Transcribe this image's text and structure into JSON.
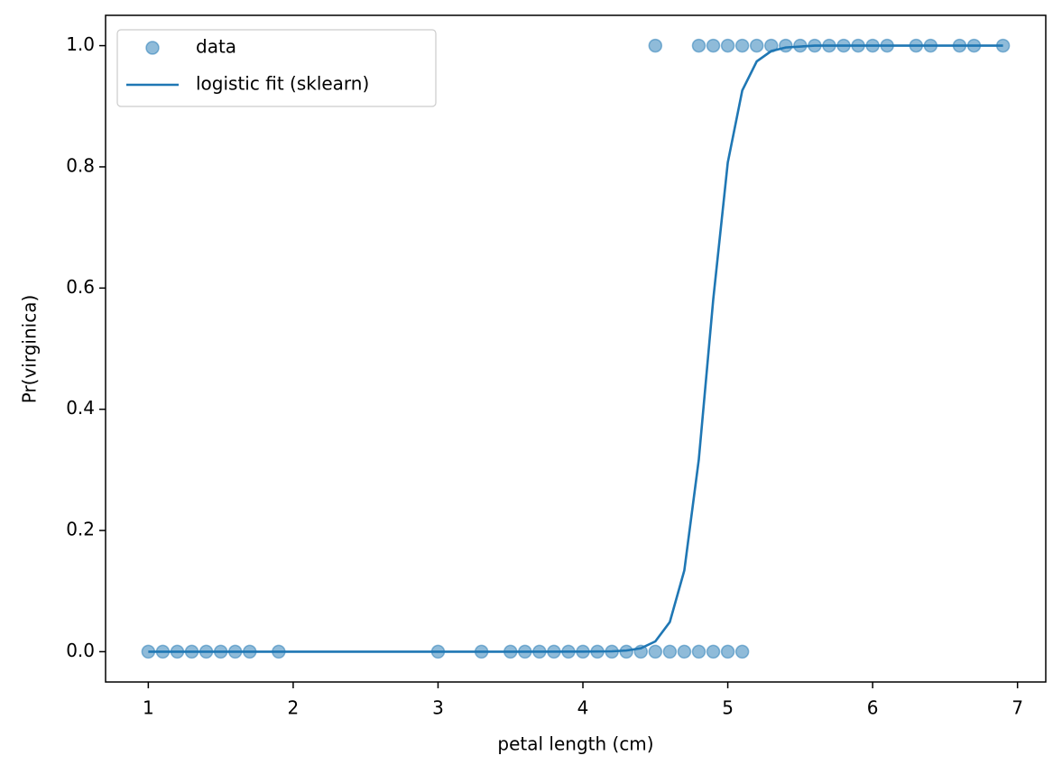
{
  "chart_data": {
    "type": "scatter",
    "xlabel": "petal length (cm)",
    "ylabel": "Pr(virginica)",
    "xlim": [
      0.705,
      7.195
    ],
    "ylim": [
      -0.05,
      1.05
    ],
    "xticks": [
      1,
      2,
      3,
      4,
      5,
      6,
      7
    ],
    "yticks": [
      {
        "value": 0,
        "label": "0.0"
      },
      0.2,
      0.4,
      0.6,
      0.8,
      {
        "value": 1,
        "label": "1.0"
      }
    ],
    "legend": "upper left",
    "series": [
      {
        "name": "data",
        "type": "scatter",
        "color": "#1f77b4",
        "alpha": 0.5,
        "x": [
          1.0,
          1.1,
          1.2,
          1.3,
          1.4,
          1.5,
          1.6,
          1.7,
          1.9,
          3.0,
          3.3,
          3.5,
          3.6,
          3.7,
          3.8,
          3.9,
          4.0,
          4.1,
          4.2,
          4.3,
          4.4,
          4.5,
          4.6,
          4.7,
          4.8,
          4.9,
          5.0,
          5.1,
          4.5,
          4.8,
          4.9,
          5.0,
          5.1,
          5.2,
          5.3,
          5.4,
          5.5,
          5.6,
          5.7,
          5.8,
          5.9,
          6.0,
          6.1,
          6.3,
          6.4,
          6.6,
          6.7,
          6.9
        ],
        "values": [
          0,
          0,
          0,
          0,
          0,
          0,
          0,
          0,
          0,
          0,
          0,
          0,
          0,
          0,
          0,
          0,
          0,
          0,
          0,
          0,
          0,
          0,
          0,
          0,
          0,
          0,
          0,
          0,
          1,
          1,
          1,
          1,
          1,
          1,
          1,
          1,
          1,
          1,
          1,
          1,
          1,
          1,
          1,
          1,
          1,
          1,
          1,
          1
        ]
      },
      {
        "name": "logistic fit (sklearn)",
        "type": "line",
        "color": "#1f77b4",
        "x": [
          1.0,
          2.0,
          3.0,
          3.5,
          4.0,
          4.2,
          4.3,
          4.4,
          4.5,
          4.6,
          4.7,
          4.8,
          4.9,
          5.0,
          5.1,
          5.2,
          5.3,
          5.4,
          5.6,
          6.0,
          6.9
        ],
        "values": [
          0,
          0,
          0,
          0,
          0.0001,
          0.0006,
          0.0019,
          0.0056,
          0.017,
          0.049,
          0.134,
          0.317,
          0.582,
          0.807,
          0.926,
          0.974,
          0.991,
          0.997,
          1.0,
          1.0,
          1.0
        ]
      }
    ]
  }
}
